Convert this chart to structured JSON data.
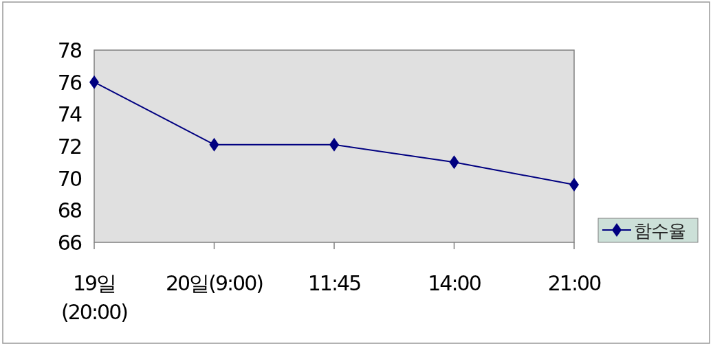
{
  "chart_data": {
    "type": "line",
    "categories": [
      "19일 (20:00)",
      "20일(9:00)",
      "11:45",
      "14:00",
      "21:00"
    ],
    "series": [
      {
        "name": "함수율",
        "color": "#000080",
        "values": [
          76,
          72.1,
          72.1,
          71.0,
          69.6
        ]
      }
    ],
    "ylim": [
      66,
      78
    ],
    "yticks": [
      66,
      68,
      70,
      72,
      74,
      76,
      78
    ],
    "marker": "diamond",
    "legend": "right",
    "grid": false
  }
}
